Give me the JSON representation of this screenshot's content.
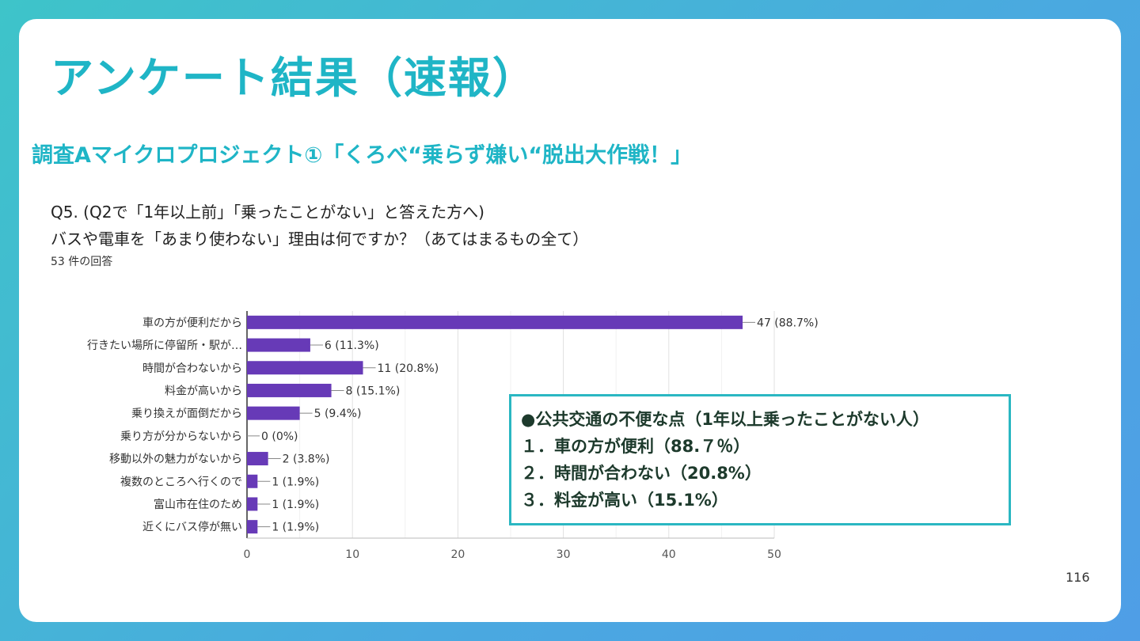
{
  "slide": {
    "title": "アンケート結果（速報）",
    "subtitle": "調査Aマイクロプロジェクト①「くろべ“乗らず嫌い“脱出大作戦！」",
    "page_number": "116"
  },
  "question": {
    "line1": "Q5. (Q2で「1年以上前」「乗ったことがない」と答えた方へ)",
    "line2": "バスや電車を「あまり使わない」理由は何ですか？（あてはまるもの全て）",
    "response_count": "53 件の回答"
  },
  "summary_box": {
    "heading": "●公共交通の不便な点（1年以上乗ったことがない人）",
    "items": [
      "１．車の方が便利（88.７％）",
      "２．時間が合わない（20.8%）",
      "３．料金が高い（15.1%）"
    ]
  },
  "colors": {
    "bar": "#673ab7",
    "accent": "#1fb5c6",
    "grid": "#e0e0e0"
  },
  "chart_data": {
    "type": "bar",
    "orientation": "horizontal",
    "categories": [
      "車の方が便利だから",
      "行きたい場所に停留所・駅が…",
      "時間が合わないから",
      "料金が高いから",
      "乗り換えが面倒だから",
      "乗り方が分からないから",
      "移動以外の魅力がないから",
      "複数のところへ行くので",
      "富山市在住のため",
      "近くにバス停が無い"
    ],
    "values": [
      47,
      6,
      11,
      8,
      5,
      0,
      2,
      1,
      1,
      1
    ],
    "data_labels": [
      "47 (88.7%)",
      "6 (11.3%)",
      "11 (20.8%)",
      "8 (15.1%)",
      "5 (9.4%)",
      "0 (0%)",
      "2 (3.8%)",
      "1 (1.9%)",
      "1 (1.9%)",
      "1 (1.9%)"
    ],
    "xlim": [
      0,
      50
    ],
    "xticks": [
      0,
      10,
      20,
      30,
      40,
      50
    ],
    "grid": true,
    "title": "",
    "xlabel": "",
    "ylabel": ""
  }
}
